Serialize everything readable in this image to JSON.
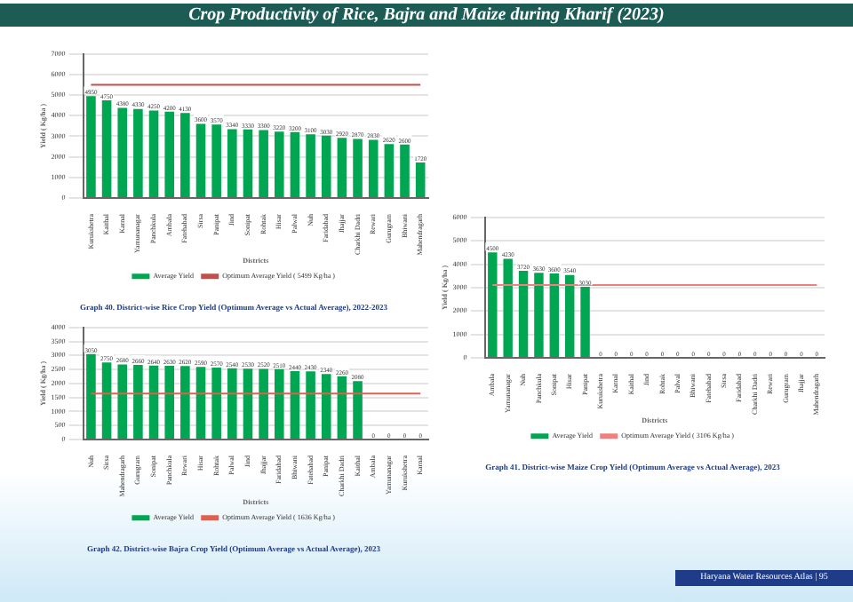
{
  "chart_data": [
    {
      "type": "bar",
      "title": "Graph 40. District-wise Rice Crop Yield (Optimum Average vs Actual Average), 2022-2023",
      "xlabel": "Districts",
      "ylabel": "Yield ( Kg/ha )",
      "annotations": [
        "Crop Productivity of Rice, Bajra and Maize during Kharif (2023)",
        "Haryana Water Resources Atlas | 95"
      ],
      "categories": [
        "Kurukshetra",
        "Kaithal",
        "Karnal",
        "Yamunanagar",
        "Panchkula",
        "Ambala",
        "Fatehabad",
        "Sirsa",
        "Panipat",
        "Jind",
        "Sonipat",
        "Rohtak",
        "Hisar",
        "Palwal",
        "Nuh",
        "Faridabad",
        "Jhajjar",
        "Charkhi Dadri",
        "Rewari",
        "Gurugram",
        "Bhiwani",
        "Mahendragarh"
      ],
      "series": [
        {
          "name": "Average Yield",
          "color": "#00a651",
          "values": [
            4950,
            4750,
            4380,
            4330,
            4250,
            4200,
            4130,
            3600,
            3570,
            3340,
            3330,
            3300,
            3220,
            3200,
            3100,
            3030,
            2920,
            2870,
            2830,
            2620,
            2600,
            1720
          ]
        }
      ],
      "ref_lines": [
        {
          "axis": "y",
          "value": 5499,
          "label": "Optimum Average Yield ( 5499 Kg/ha )",
          "color": "#c0504d"
        }
      ],
      "ylim": [
        0,
        7000
      ],
      "yticks": [
        0,
        1000,
        2000,
        3000,
        4000,
        5000,
        6000,
        7000
      ],
      "data_labels": true,
      "legend": "bottom",
      "grid": "y"
    },
    {
      "type": "bar",
      "title": "Graph 42. District-wise Bajra Crop Yield (Optimum Average vs Actual Average), 2023",
      "xlabel": "Districts",
      "ylabel": "Yield ( Kg/ha )",
      "categories": [
        "Nuh",
        "Sirsa",
        "Mahendragarh",
        "Gurugram",
        "Sonipat",
        "Panchkula",
        "Rewari",
        "Hisar",
        "Rohtak",
        "Palwal",
        "Jind",
        "Jhajjar",
        "Faridabad",
        "Bhiwani",
        "Fatehabad",
        "Panipat",
        "Charkhi Dadri",
        "Kaithal",
        "Ambala",
        "Yamunanagar",
        "Kurukshetra",
        "Karnal"
      ],
      "series": [
        {
          "name": "Average Yield",
          "color": "#00a651",
          "values": [
            3050,
            2750,
            2680,
            2660,
            2640,
            2630,
            2620,
            2590,
            2570,
            2540,
            2530,
            2520,
            2510,
            2440,
            2430,
            2340,
            2260,
            2080,
            0,
            0,
            0,
            0
          ]
        }
      ],
      "ref_lines": [
        {
          "axis": "y",
          "value": 1636,
          "label": "Optimum Average Yield ( 1636 Kg/ha )",
          "color": "#e0604f"
        }
      ],
      "ylim": [
        0,
        4000
      ],
      "yticks": [
        0,
        500,
        1000,
        1500,
        2000,
        2500,
        3000,
        3500,
        4000
      ],
      "data_labels": true,
      "legend": "bottom",
      "grid": "y"
    },
    {
      "type": "bar",
      "title": "Graph 41. District-wise Maize Crop Yield (Optimum Average vs Actual Average), 2023",
      "xlabel": "Districts",
      "ylabel": "Yield ( Kg/ha )",
      "categories": [
        "Ambala",
        "Yamunanagar",
        "Nuh",
        "Panchkula",
        "Sonipat",
        "Hisar",
        "Panipat",
        "Kurukshetra",
        "Karnal",
        "Kaithal",
        "Jind",
        "Rohtak",
        "Palwal",
        "Bhiwani",
        "Fatehabad",
        "Sirsa",
        "Faridabad",
        "Charkhi Dadri",
        "Rewari",
        "Gurugram",
        "Jhajjar",
        "Mahendragarh"
      ],
      "series": [
        {
          "name": "Average Yield",
          "color": "#00a651",
          "values": [
            4500,
            4230,
            3720,
            3630,
            3600,
            3540,
            3030,
            0,
            0,
            0,
            0,
            0,
            0,
            0,
            0,
            0,
            0,
            0,
            0,
            0,
            0,
            0
          ]
        }
      ],
      "ref_lines": [
        {
          "axis": "y",
          "value": 3106,
          "label": "Optimum Average Yield ( 3106 Kg/ha )",
          "color": "#f08080"
        }
      ],
      "ylim": [
        0,
        6000
      ],
      "yticks": [
        0,
        1000,
        2000,
        3000,
        4000,
        5000,
        6000
      ],
      "data_labels": true,
      "legend": "bottom",
      "grid": "y"
    }
  ]
}
